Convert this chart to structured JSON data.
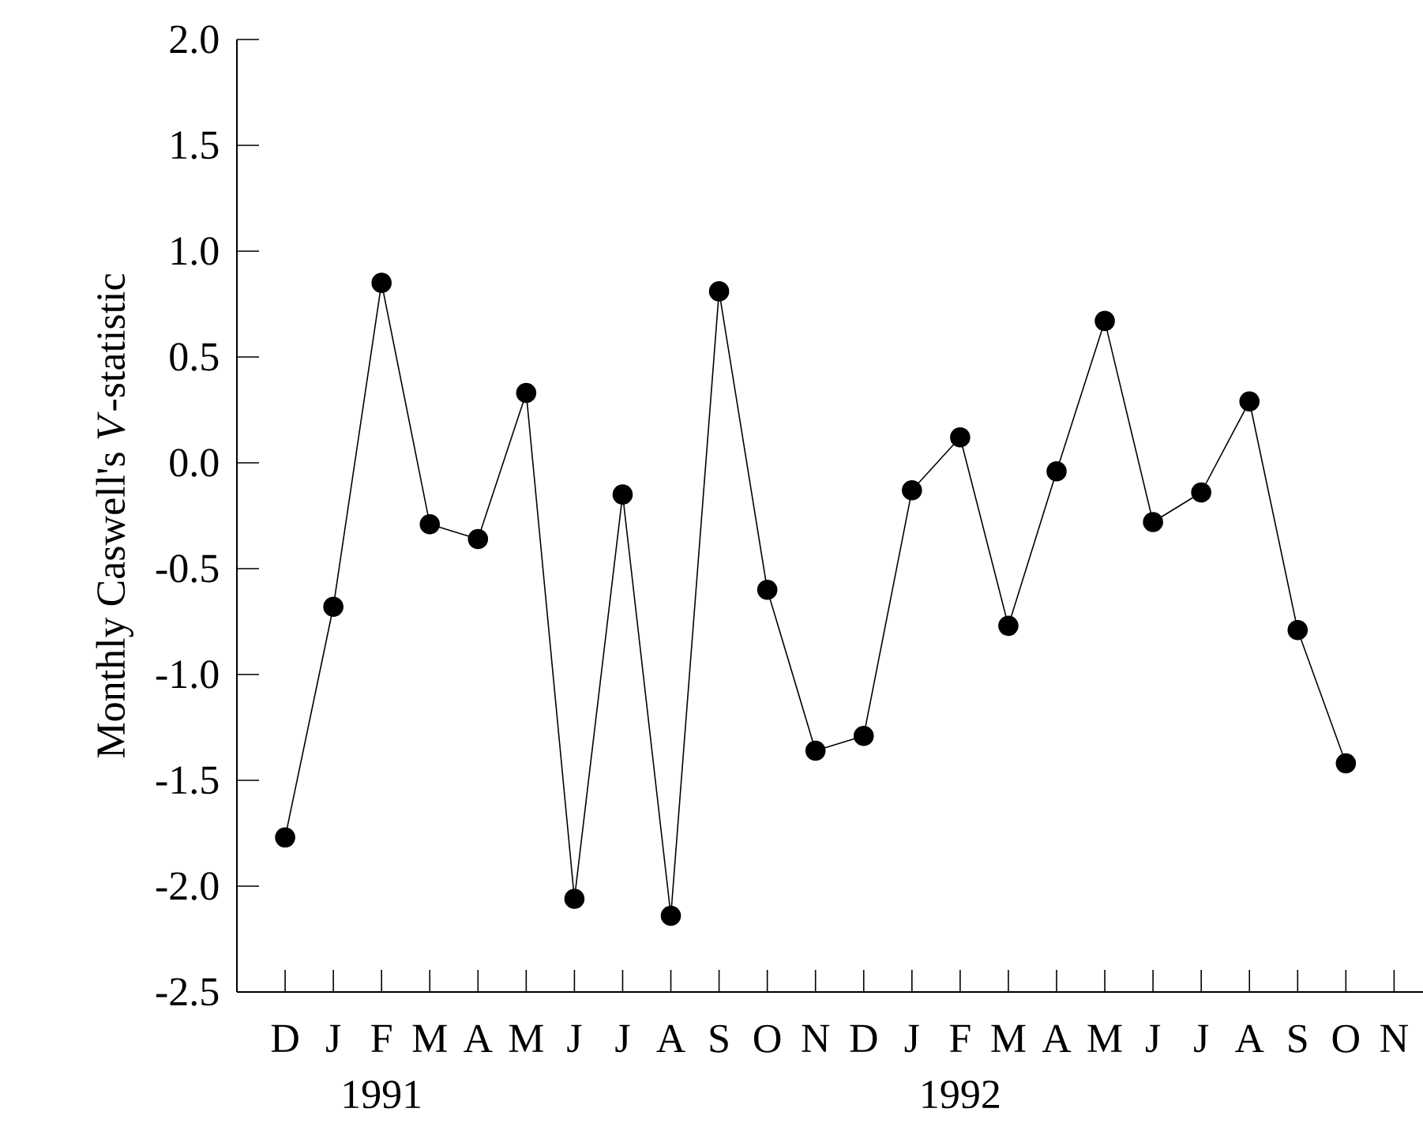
{
  "chart_data": {
    "type": "line",
    "ylabel": "Monthly Caswell's *V*-statistic",
    "color": "#000000",
    "marker": "circle",
    "line_style": "solid",
    "categories": [
      "D",
      "J",
      "F",
      "M",
      "A",
      "M",
      "J",
      "J",
      "A",
      "S",
      "O",
      "N",
      "D",
      "J",
      "F",
      "M",
      "A",
      "M",
      "J",
      "J",
      "A",
      "S",
      "O",
      "N"
    ],
    "values": [
      -1.77,
      -0.68,
      0.85,
      -0.29,
      -0.36,
      0.33,
      -2.06,
      -0.15,
      -2.14,
      0.81,
      -0.6,
      -1.36,
      -1.29,
      -0.13,
      0.12,
      -0.77,
      -0.04,
      0.67,
      -0.28,
      -0.14,
      0.29,
      -0.79,
      -1.42,
      null
    ],
    "ylim": [
      -2.5,
      2.0
    ],
    "yticks": [
      {
        "value": -2.5,
        "label": "-2.5"
      },
      {
        "value": -2.0,
        "label": "-2.0"
      },
      {
        "value": -1.5,
        "label": "-1.5"
      },
      {
        "value": -1.0,
        "label": "-1.0"
      },
      {
        "value": -0.5,
        "label": "-0.5"
      },
      {
        "value": 0.0,
        "label": "0.0"
      },
      {
        "value": 0.5,
        "label": "0.5"
      },
      {
        "value": 1.0,
        "label": "1.0"
      },
      {
        "value": 1.5,
        "label": "1.5"
      },
      {
        "value": 2.0,
        "label": "2.0"
      }
    ],
    "annotations": [
      "1991",
      "1992"
    ]
  }
}
